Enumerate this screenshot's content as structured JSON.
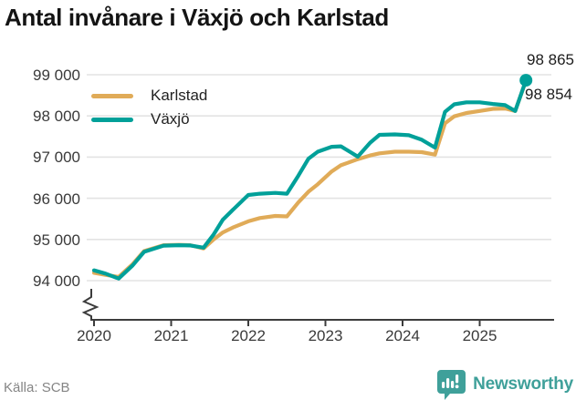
{
  "title": "Antal invånare i Växjö och Karlstad",
  "chart_data": {
    "type": "line",
    "title": "Antal invånare i Växjö och Karlstad",
    "xlabel": "",
    "ylabel": "",
    "unit": "invånare",
    "grid": "horizontal",
    "legend_position": "top-left",
    "x_axis": {
      "tick_years": [
        2020,
        2021,
        2022,
        2023,
        2024,
        2025
      ],
      "tick_labels": [
        "2020",
        "2021",
        "2022",
        "2023",
        "2024",
        "2025"
      ]
    },
    "y_axis": {
      "tick_values": [
        94000,
        95000,
        96000,
        97000,
        98000,
        99000
      ],
      "tick_labels": [
        "94 000",
        "95 000",
        "96 000",
        "97 000",
        "98 000",
        "99 000"
      ],
      "range_shown": [
        94000,
        99000
      ],
      "broken_axis": true
    },
    "series": [
      {
        "name": "Karlstad",
        "color": "#e0ab58",
        "final_value": 98854,
        "points": [
          [
            2020.0,
            94190
          ],
          [
            2020.15,
            94140
          ],
          [
            2020.32,
            94090
          ],
          [
            2020.5,
            94400
          ],
          [
            2020.65,
            94720
          ],
          [
            2020.9,
            94860
          ],
          [
            2021.1,
            94870
          ],
          [
            2021.25,
            94860
          ],
          [
            2021.42,
            94780
          ],
          [
            2021.55,
            95000
          ],
          [
            2021.67,
            95170
          ],
          [
            2021.8,
            95290
          ],
          [
            2022.0,
            95440
          ],
          [
            2022.15,
            95520
          ],
          [
            2022.35,
            95570
          ],
          [
            2022.5,
            95560
          ],
          [
            2022.65,
            95900
          ],
          [
            2022.78,
            96160
          ],
          [
            2022.9,
            96340
          ],
          [
            2023.08,
            96650
          ],
          [
            2023.2,
            96800
          ],
          [
            2023.42,
            96950
          ],
          [
            2023.58,
            97040
          ],
          [
            2023.7,
            97090
          ],
          [
            2023.9,
            97130
          ],
          [
            2024.08,
            97130
          ],
          [
            2024.25,
            97120
          ],
          [
            2024.42,
            97060
          ],
          [
            2024.55,
            97820
          ],
          [
            2024.67,
            97990
          ],
          [
            2024.83,
            98070
          ],
          [
            2025.0,
            98120
          ],
          [
            2025.17,
            98170
          ],
          [
            2025.33,
            98180
          ],
          [
            2025.46,
            98120
          ],
          [
            2025.6,
            98854
          ]
        ]
      },
      {
        "name": "Växjö",
        "color": "#00a099",
        "final_value": 98865,
        "end_marker": true,
        "points": [
          [
            2020.0,
            94250
          ],
          [
            2020.15,
            94170
          ],
          [
            2020.32,
            94050
          ],
          [
            2020.5,
            94370
          ],
          [
            2020.65,
            94700
          ],
          [
            2020.9,
            94850
          ],
          [
            2021.1,
            94860
          ],
          [
            2021.25,
            94855
          ],
          [
            2021.42,
            94800
          ],
          [
            2021.55,
            95120
          ],
          [
            2021.67,
            95480
          ],
          [
            2021.8,
            95720
          ],
          [
            2022.0,
            96080
          ],
          [
            2022.15,
            96110
          ],
          [
            2022.35,
            96130
          ],
          [
            2022.5,
            96110
          ],
          [
            2022.65,
            96550
          ],
          [
            2022.78,
            96960
          ],
          [
            2022.9,
            97130
          ],
          [
            2023.08,
            97250
          ],
          [
            2023.2,
            97260
          ],
          [
            2023.42,
            97010
          ],
          [
            2023.58,
            97350
          ],
          [
            2023.7,
            97540
          ],
          [
            2023.9,
            97550
          ],
          [
            2024.08,
            97530
          ],
          [
            2024.25,
            97420
          ],
          [
            2024.42,
            97230
          ],
          [
            2024.55,
            98100
          ],
          [
            2024.67,
            98280
          ],
          [
            2024.83,
            98330
          ],
          [
            2025.0,
            98330
          ],
          [
            2025.17,
            98290
          ],
          [
            2025.33,
            98260
          ],
          [
            2025.46,
            98120
          ],
          [
            2025.6,
            98865
          ]
        ]
      }
    ]
  },
  "legend": {
    "items": [
      {
        "label": "Karlstad",
        "color": "#e0ab58"
      },
      {
        "label": "Växjö",
        "color": "#00a099"
      }
    ]
  },
  "annotations": {
    "vaxjo_value": "98 865",
    "karlstad_value": "98 854"
  },
  "footer": {
    "source": "Källa: SCB",
    "brand": "Newsworthy"
  },
  "icons": {
    "brand_logo": "newsworthy-speech-bubble-bar-chart-icon"
  },
  "colors": {
    "vaxjo_line": "#00a099",
    "karlstad_line": "#e0ab58",
    "gridline": "#e3e3e3",
    "axis": "#3c3c3c",
    "brand_teal": "#3fa09a"
  }
}
